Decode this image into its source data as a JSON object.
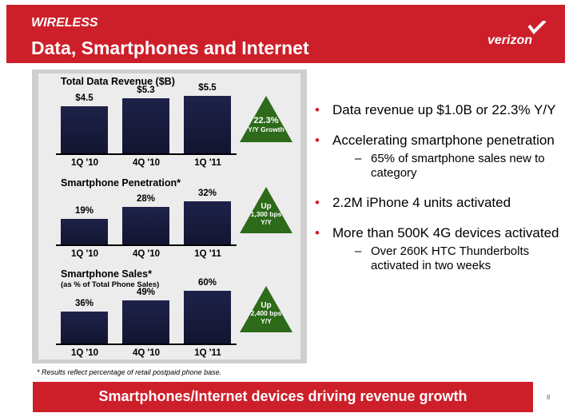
{
  "header": {
    "section": "WIRELESS",
    "title": "Data, Smartphones and Internet",
    "logo_text": "verizon"
  },
  "colors": {
    "brand_red": "#cd1f2a",
    "bar_navy": "#1a1e40",
    "badge_green": "#2d6a1a"
  },
  "charts": [
    {
      "type": "bar",
      "title": "Total Data Revenue ($B)",
      "categories": [
        "1Q '10",
        "4Q '10",
        "1Q '11"
      ],
      "value_labels": [
        "$4.5",
        "$5.3",
        "$5.5"
      ],
      "values": [
        4.5,
        5.3,
        5.5
      ],
      "badge_lines": [
        "22.3%",
        "Y/Y Growth"
      ]
    },
    {
      "type": "bar",
      "title": "Smartphone Penetration*",
      "categories": [
        "1Q '10",
        "4Q '10",
        "1Q '11"
      ],
      "value_labels": [
        "19%",
        "28%",
        "32%"
      ],
      "values": [
        19,
        28,
        32
      ],
      "badge_lines": [
        "Up",
        "1,300 bps",
        "Y/Y"
      ]
    },
    {
      "type": "bar",
      "title": "Smartphone Sales*",
      "subtitle": "(as % of Total Phone Sales)",
      "categories": [
        "1Q '10",
        "4Q '10",
        "1Q '11"
      ],
      "value_labels": [
        "36%",
        "49%",
        "60%"
      ],
      "values": [
        36,
        49,
        60
      ],
      "badge_lines": [
        "Up",
        "2,400 bps",
        "Y/Y"
      ]
    }
  ],
  "bullets": [
    {
      "text": "Data revenue up $1.0B or 22.3% Y/Y",
      "subs": []
    },
    {
      "text": "Accelerating smartphone penetration",
      "subs": [
        "65% of smartphone sales new to category"
      ]
    },
    {
      "text": "2.2M iPhone 4 units activated",
      "subs": []
    },
    {
      "text": "More than 500K 4G devices activated",
      "subs": [
        "Over 260K HTC Thunderbolts activated in two weeks"
      ]
    }
  ],
  "footnote": "* Results reflect percentage of retail postpaid phone base.",
  "footer_banner": "Smartphones/Internet devices driving revenue growth",
  "page_number": "8"
}
